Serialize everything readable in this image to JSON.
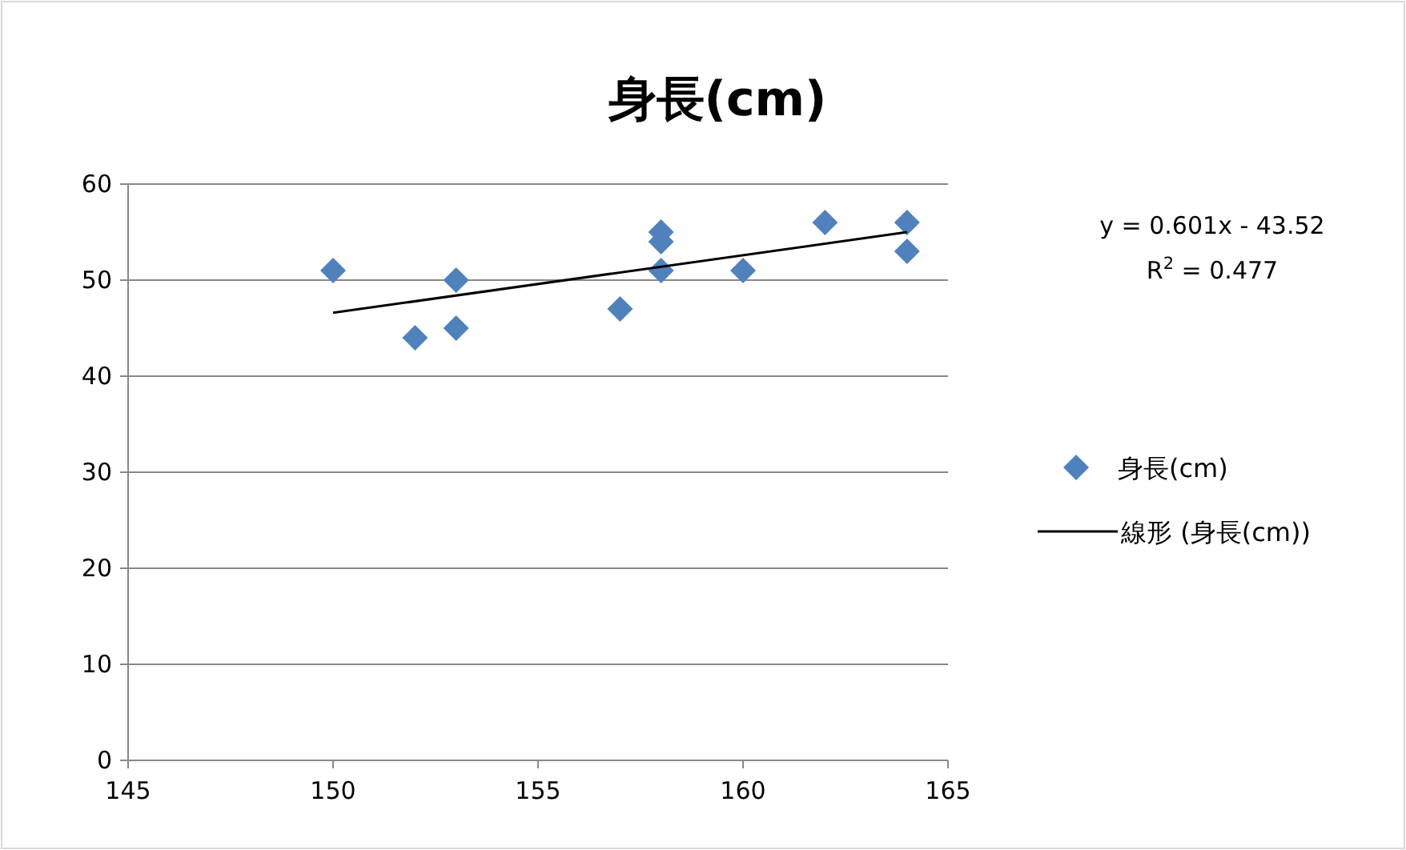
{
  "chart_data": {
    "type": "scatter",
    "title": "身長(cm)",
    "x": [
      150,
      152,
      153,
      153,
      157,
      158,
      158,
      158,
      160,
      162,
      164,
      164
    ],
    "series": [
      {
        "name": "身長(cm)",
        "color": "#4f81bd",
        "marker": "diamond",
        "values": [
          51,
          44,
          50,
          45,
          47,
          55,
          54,
          51,
          51,
          56,
          56,
          53
        ]
      },
      {
        "name": "線形 (身長(cm))",
        "type": "line",
        "marker": "none",
        "color": "#000000",
        "x": [
          150,
          164
        ],
        "values": [
          46.6,
          55.0
        ]
      }
    ],
    "xlim": [
      145,
      165
    ],
    "ylim": [
      0,
      60
    ],
    "xticks": [
      145,
      150,
      155,
      160,
      165
    ],
    "yticks": [
      0,
      10,
      20,
      30,
      40,
      50,
      60
    ],
    "grid": "y",
    "legend": "right",
    "annotations": [
      "y = 0.601x - 43.52",
      "R$^{2}$ = 0.477"
    ]
  }
}
